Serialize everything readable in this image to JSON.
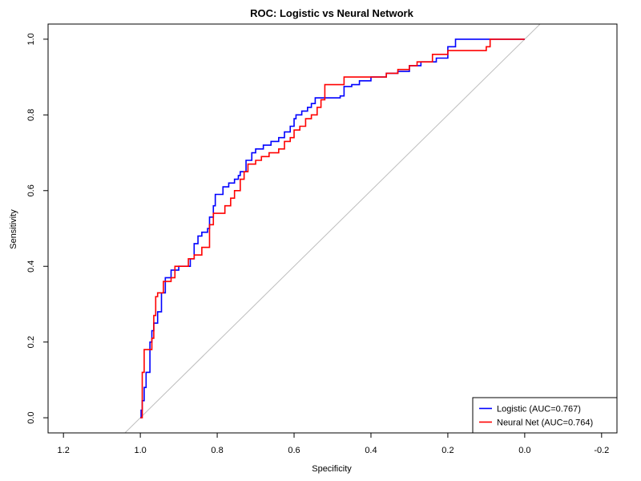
{
  "chart_data": {
    "type": "line",
    "title": "ROC: Logistic vs Neural Network",
    "xlabel": "Specificity",
    "ylabel": "Sensitivity",
    "x_reversed": true,
    "xlim": [
      1.24,
      -0.24
    ],
    "ylim": [
      -0.04,
      1.04
    ],
    "x_ticks": [
      1.2,
      1.0,
      0.8,
      0.6,
      0.4,
      0.2,
      0.0,
      -0.2
    ],
    "x_tick_labels": [
      "1.2",
      "1.0",
      "0.8",
      "0.6",
      "0.4",
      "0.2",
      "0.0",
      "-0.2"
    ],
    "y_ticks": [
      0.0,
      0.2,
      0.4,
      0.6,
      0.8,
      1.0
    ],
    "y_tick_labels": [
      "0.0",
      "0.2",
      "0.4",
      "0.6",
      "0.8",
      "1.0"
    ],
    "grid": false,
    "legend_position": "bottom-right",
    "reference_line": {
      "color": "#bdbdbd"
    },
    "series": [
      {
        "name": "Logistic (AUC=0.767)",
        "color": "#0000ff",
        "points": [
          [
            1.0,
            0.0
          ],
          [
            0.998,
            0.02
          ],
          [
            0.995,
            0.045
          ],
          [
            0.99,
            0.08
          ],
          [
            0.985,
            0.12
          ],
          [
            0.975,
            0.2
          ],
          [
            0.97,
            0.23
          ],
          [
            0.965,
            0.25
          ],
          [
            0.955,
            0.28
          ],
          [
            0.945,
            0.33
          ],
          [
            0.935,
            0.37
          ],
          [
            0.92,
            0.39
          ],
          [
            0.9,
            0.4
          ],
          [
            0.88,
            0.4
          ],
          [
            0.87,
            0.42
          ],
          [
            0.86,
            0.46
          ],
          [
            0.85,
            0.48
          ],
          [
            0.84,
            0.49
          ],
          [
            0.825,
            0.5
          ],
          [
            0.82,
            0.53
          ],
          [
            0.81,
            0.56
          ],
          [
            0.805,
            0.59
          ],
          [
            0.785,
            0.61
          ],
          [
            0.77,
            0.62
          ],
          [
            0.755,
            0.63
          ],
          [
            0.745,
            0.64
          ],
          [
            0.74,
            0.65
          ],
          [
            0.725,
            0.68
          ],
          [
            0.71,
            0.7
          ],
          [
            0.7,
            0.71
          ],
          [
            0.68,
            0.72
          ],
          [
            0.66,
            0.73
          ],
          [
            0.64,
            0.74
          ],
          [
            0.625,
            0.755
          ],
          [
            0.61,
            0.77
          ],
          [
            0.6,
            0.79
          ],
          [
            0.595,
            0.8
          ],
          [
            0.58,
            0.81
          ],
          [
            0.565,
            0.82
          ],
          [
            0.555,
            0.83
          ],
          [
            0.545,
            0.845
          ],
          [
            0.5,
            0.845
          ],
          [
            0.48,
            0.85
          ],
          [
            0.47,
            0.875
          ],
          [
            0.45,
            0.88
          ],
          [
            0.43,
            0.89
          ],
          [
            0.4,
            0.9
          ],
          [
            0.36,
            0.91
          ],
          [
            0.33,
            0.915
          ],
          [
            0.3,
            0.93
          ],
          [
            0.27,
            0.94
          ],
          [
            0.23,
            0.95
          ],
          [
            0.2,
            0.98
          ],
          [
            0.18,
            1.0
          ],
          [
            0.0,
            1.0
          ]
        ]
      },
      {
        "name": "Neural Net (AUC=0.764)",
        "color": "#ff0000",
        "points": [
          [
            1.0,
            0.0
          ],
          [
            0.995,
            0.12
          ],
          [
            0.99,
            0.18
          ],
          [
            0.975,
            0.18
          ],
          [
            0.97,
            0.21
          ],
          [
            0.965,
            0.27
          ],
          [
            0.96,
            0.32
          ],
          [
            0.955,
            0.33
          ],
          [
            0.94,
            0.36
          ],
          [
            0.92,
            0.37
          ],
          [
            0.91,
            0.4
          ],
          [
            0.885,
            0.4
          ],
          [
            0.875,
            0.42
          ],
          [
            0.86,
            0.43
          ],
          [
            0.84,
            0.45
          ],
          [
            0.82,
            0.51
          ],
          [
            0.81,
            0.54
          ],
          [
            0.79,
            0.54
          ],
          [
            0.78,
            0.56
          ],
          [
            0.765,
            0.58
          ],
          [
            0.755,
            0.6
          ],
          [
            0.74,
            0.63
          ],
          [
            0.73,
            0.65
          ],
          [
            0.72,
            0.67
          ],
          [
            0.7,
            0.68
          ],
          [
            0.685,
            0.69
          ],
          [
            0.665,
            0.7
          ],
          [
            0.64,
            0.71
          ],
          [
            0.625,
            0.73
          ],
          [
            0.61,
            0.74
          ],
          [
            0.6,
            0.76
          ],
          [
            0.585,
            0.77
          ],
          [
            0.57,
            0.79
          ],
          [
            0.555,
            0.8
          ],
          [
            0.54,
            0.82
          ],
          [
            0.53,
            0.84
          ],
          [
            0.52,
            0.88
          ],
          [
            0.48,
            0.88
          ],
          [
            0.47,
            0.9
          ],
          [
            0.4,
            0.9
          ],
          [
            0.36,
            0.91
          ],
          [
            0.33,
            0.92
          ],
          [
            0.3,
            0.93
          ],
          [
            0.28,
            0.94
          ],
          [
            0.24,
            0.96
          ],
          [
            0.2,
            0.97
          ],
          [
            0.15,
            0.97
          ],
          [
            0.1,
            0.98
          ],
          [
            0.09,
            1.0
          ],
          [
            0.0,
            1.0
          ]
        ]
      }
    ]
  }
}
